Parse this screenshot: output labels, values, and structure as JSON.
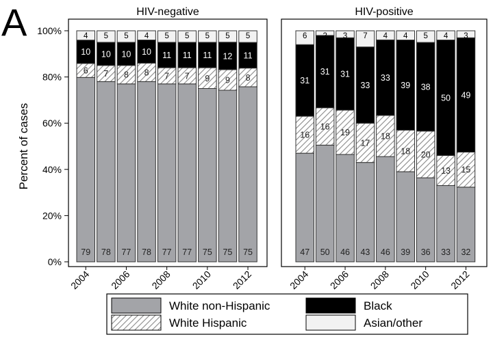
{
  "panel_letter": "A",
  "colors": {
    "white_non_hispanic": "#a3a4a8",
    "white_hispanic": "hatched",
    "black": "#000000",
    "asian_other": "#f2f2f2"
  },
  "chart_data": [
    {
      "type": "bar",
      "stacked": true,
      "title": "HIV-negative",
      "ylabel": "Percent of cases",
      "ylim": [
        0,
        100
      ],
      "yticks": [
        "0%",
        "20%",
        "40%",
        "60%",
        "80%",
        "100%"
      ],
      "categories": [
        "2004",
        "2005",
        "2006",
        "2007",
        "2008",
        "2009",
        "2010",
        "2011",
        "2012"
      ],
      "xtick_labels": [
        "2004",
        "2006",
        "2008",
        "2010",
        "2012"
      ],
      "series": [
        {
          "name": "White non-Hispanic",
          "values": [
            79,
            78,
            77,
            78,
            77,
            77,
            75,
            75,
            75
          ]
        },
        {
          "name": "White Hispanic",
          "values": [
            6,
            7,
            8,
            8,
            7,
            7,
            9,
            9,
            8
          ]
        },
        {
          "name": "Black",
          "values": [
            10,
            10,
            10,
            10,
            11,
            11,
            11,
            12,
            11
          ]
        },
        {
          "name": "Asian/other",
          "values": [
            4,
            5,
            5,
            4,
            5,
            5,
            5,
            5,
            5
          ]
        }
      ]
    },
    {
      "type": "bar",
      "stacked": true,
      "title": "HIV-positive",
      "ylim": [
        0,
        100
      ],
      "categories": [
        "2004",
        "2005",
        "2006",
        "2007",
        "2008",
        "2009",
        "2010",
        "2011",
        "2012"
      ],
      "xtick_labels": [
        "2004",
        "2006",
        "2008",
        "2010",
        "2012"
      ],
      "series": [
        {
          "name": "White non-Hispanic",
          "values": [
            47,
            50,
            46,
            43,
            46,
            39,
            36,
            33,
            32
          ]
        },
        {
          "name": "White Hispanic",
          "values": [
            16,
            16,
            19,
            17,
            18,
            18,
            20,
            13,
            15
          ]
        },
        {
          "name": "Black",
          "values": [
            31,
            31,
            31,
            33,
            33,
            39,
            38,
            50,
            49
          ]
        },
        {
          "name": "Asian/other",
          "values": [
            6,
            2,
            3,
            7,
            4,
            4,
            5,
            4,
            3
          ]
        }
      ]
    }
  ],
  "legend": [
    {
      "label": "White non-Hispanic",
      "key": "white_non_hispanic"
    },
    {
      "label": "White Hispanic",
      "key": "white_hispanic"
    },
    {
      "label": "Black",
      "key": "black"
    },
    {
      "label": "Asian/other",
      "key": "asian_other"
    }
  ]
}
